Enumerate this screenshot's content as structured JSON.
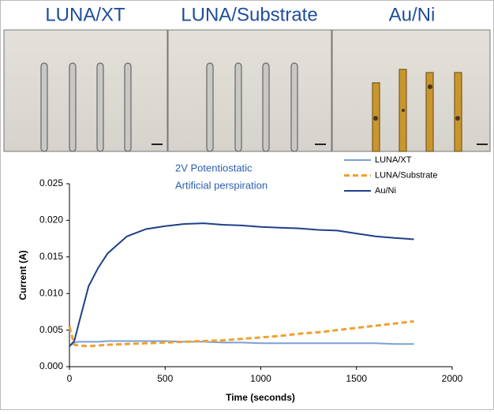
{
  "panels": [
    {
      "label": "LUNA/XT"
    },
    {
      "label": "LUNA/Substrate"
    },
    {
      "label": "Au/Ni"
    }
  ],
  "chart_data": {
    "type": "line",
    "annotations": [
      "2V Potentiostatic",
      "Artificial perspiration"
    ],
    "x_label": "Time (seconds)",
    "y_label": "Current (A)",
    "x": [
      0,
      25,
      50,
      100,
      150,
      200,
      300,
      400,
      500,
      600,
      700,
      800,
      900,
      1000,
      1100,
      1200,
      1300,
      1400,
      1500,
      1600,
      1700,
      1800
    ],
    "series": [
      {
        "name": "LUNA/XT",
        "color": "#7a9fd6",
        "dash": false,
        "values": [
          0.0028,
          0.0033,
          0.0034,
          0.0034,
          0.0034,
          0.0035,
          0.0035,
          0.0035,
          0.0035,
          0.0034,
          0.0034,
          0.0033,
          0.0033,
          0.0032,
          0.0032,
          0.0032,
          0.0032,
          0.0032,
          0.0032,
          0.0032,
          0.0031,
          0.0031
        ]
      },
      {
        "name": "LUNA/Substrate",
        "color": "#f0a030",
        "dash": true,
        "values": [
          0.0055,
          0.003,
          0.0029,
          0.0028,
          0.0029,
          0.003,
          0.0031,
          0.0032,
          0.0033,
          0.0034,
          0.0035,
          0.0036,
          0.0038,
          0.004,
          0.0042,
          0.0045,
          0.0047,
          0.005,
          0.0053,
          0.0056,
          0.0059,
          0.0062
        ]
      },
      {
        "name": "Au/Ni",
        "color": "#1f3f8a",
        "dash": false,
        "values": [
          0.0028,
          0.0035,
          0.006,
          0.011,
          0.0135,
          0.0155,
          0.0178,
          0.0188,
          0.0192,
          0.0195,
          0.0196,
          0.0194,
          0.0193,
          0.0191,
          0.019,
          0.0189,
          0.0187,
          0.0186,
          0.0182,
          0.0178,
          0.0176,
          0.0174
        ]
      }
    ],
    "xlim": [
      0,
      2000
    ],
    "xticks": [
      0,
      500,
      1000,
      1500,
      2000
    ],
    "ylim": [
      0,
      0.025
    ],
    "yticks": [
      {
        "value": 0,
        "label": "0.000"
      },
      {
        "value": 0.005,
        "label": "0.005"
      },
      {
        "value": 0.01,
        "label": "0.010"
      },
      {
        "value": 0.015,
        "label": "0.015"
      },
      {
        "value": 0.02,
        "label": "0.020"
      },
      {
        "value": 0.025,
        "label": "0.025"
      }
    ],
    "grid": false
  }
}
